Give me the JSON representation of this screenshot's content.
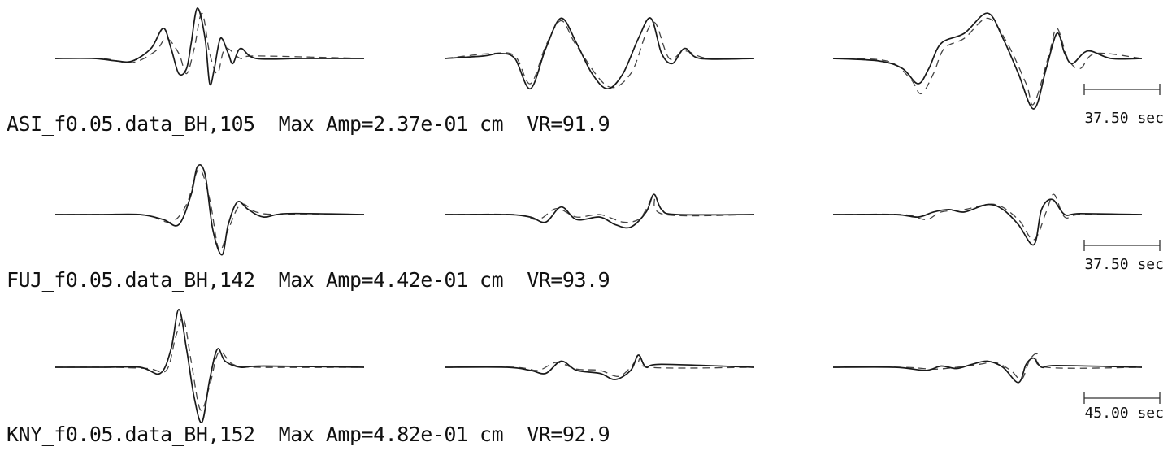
{
  "colors": {
    "observed": "#1a1a1a",
    "synthetic": "#444444",
    "background": "#ffffff"
  },
  "legend": {
    "observed": "solid line",
    "synthetic": "dashed line"
  },
  "stations": [
    {
      "name": "ASI",
      "label": "ASI_f0.05.data_BH,105  Max Amp=2.37e-01 cm  VR=91.9",
      "max_amp": "2.37e-01 cm",
      "vr": 91.9,
      "azimuth": 105,
      "scale_label": "37.50 sec",
      "components": [
        {
          "obs": [
            [
              0,
              0
            ],
            [
              0.25,
              0
            ],
            [
              0.4,
              -0.05
            ],
            [
              0.5,
              -0.05
            ],
            [
              0.62,
              0.2
            ],
            [
              0.7,
              0.6
            ],
            [
              0.75,
              0.2
            ],
            [
              0.8,
              -0.3
            ],
            [
              0.85,
              -0.2
            ],
            [
              0.88,
              0.3
            ],
            [
              0.92,
              1.0
            ],
            [
              0.97,
              0.4
            ],
            [
              1.0,
              -0.5
            ],
            [
              1.03,
              -0.2
            ],
            [
              1.07,
              0.4
            ],
            [
              1.12,
              0.1
            ],
            [
              1.15,
              -0.1
            ],
            [
              1.2,
              0.2
            ],
            [
              1.3,
              0
            ],
            [
              1.6,
              0
            ],
            [
              2.0,
              0
            ]
          ],
          "syn": [
            [
              0,
              0
            ],
            [
              0.3,
              0
            ],
            [
              0.5,
              -0.08
            ],
            [
              0.65,
              0.15
            ],
            [
              0.72,
              0.4
            ],
            [
              0.8,
              0.1
            ],
            [
              0.85,
              -0.3
            ],
            [
              0.9,
              0.2
            ],
            [
              0.95,
              0.9
            ],
            [
              1.0,
              0.1
            ],
            [
              1.05,
              -0.3
            ],
            [
              1.1,
              0.2
            ],
            [
              1.2,
              0
            ],
            [
              1.3,
              0.05
            ],
            [
              2.0,
              0
            ]
          ]
        },
        {
          "obs": [
            [
              0,
              0
            ],
            [
              0.25,
              0.05
            ],
            [
              0.35,
              0.1
            ],
            [
              0.45,
              0
            ],
            [
              0.55,
              -0.6
            ],
            [
              0.65,
              0.2
            ],
            [
              0.75,
              0.8
            ],
            [
              0.85,
              0.3
            ],
            [
              0.95,
              -0.3
            ],
            [
              1.05,
              -0.6
            ],
            [
              1.15,
              -0.3
            ],
            [
              1.25,
              0.4
            ],
            [
              1.33,
              0.8
            ],
            [
              1.4,
              0.1
            ],
            [
              1.47,
              -0.1
            ],
            [
              1.55,
              0.2
            ],
            [
              1.65,
              0
            ],
            [
              2.0,
              0
            ]
          ],
          "syn": [
            [
              0,
              0
            ],
            [
              0.3,
              0.1
            ],
            [
              0.45,
              0.05
            ],
            [
              0.55,
              -0.5
            ],
            [
              0.65,
              0.25
            ],
            [
              0.75,
              0.75
            ],
            [
              0.85,
              0.25
            ],
            [
              1.05,
              -0.55
            ],
            [
              1.2,
              -0.3
            ],
            [
              1.3,
              0.5
            ],
            [
              1.36,
              0.7
            ],
            [
              1.45,
              0
            ],
            [
              1.55,
              0.15
            ],
            [
              1.7,
              0
            ],
            [
              2.0,
              0
            ]
          ]
        },
        {
          "obs": [
            [
              0,
              0
            ],
            [
              0.3,
              -0.05
            ],
            [
              0.45,
              -0.2
            ],
            [
              0.55,
              -0.5
            ],
            [
              0.62,
              -0.2
            ],
            [
              0.7,
              0.3
            ],
            [
              0.85,
              0.5
            ],
            [
              1.0,
              0.9
            ],
            [
              1.1,
              0.4
            ],
            [
              1.2,
              -0.3
            ],
            [
              1.3,
              -1.0
            ],
            [
              1.38,
              -0.2
            ],
            [
              1.45,
              0.5
            ],
            [
              1.5,
              0.1
            ],
            [
              1.55,
              -0.1
            ],
            [
              1.65,
              0.15
            ],
            [
              1.8,
              0
            ],
            [
              2.0,
              0
            ]
          ],
          "syn": [
            [
              0,
              0
            ],
            [
              0.35,
              -0.05
            ],
            [
              0.5,
              -0.4
            ],
            [
              0.57,
              -0.7
            ],
            [
              0.65,
              -0.3
            ],
            [
              0.72,
              0.2
            ],
            [
              0.85,
              0.4
            ],
            [
              1.0,
              0.8
            ],
            [
              1.12,
              0.35
            ],
            [
              1.25,
              -0.5
            ],
            [
              1.3,
              -0.9
            ],
            [
              1.4,
              0.1
            ],
            [
              1.45,
              0.6
            ],
            [
              1.52,
              0
            ],
            [
              1.6,
              -0.2
            ],
            [
              1.7,
              0.1
            ],
            [
              2.0,
              0
            ]
          ]
        }
      ]
    },
    {
      "name": "FUJ",
      "label": "FUJ_f0.05.data_BH,142  Max Amp=4.42e-01 cm  VR=93.9",
      "max_amp": "4.42e-01 cm",
      "vr": 93.9,
      "azimuth": 142,
      "scale_label": "37.50 sec",
      "components": [
        {
          "obs": [
            [
              0,
              0
            ],
            [
              0.3,
              0
            ],
            [
              0.55,
              0
            ],
            [
              0.7,
              -0.1
            ],
            [
              0.8,
              -0.2
            ],
            [
              0.88,
              0.4
            ],
            [
              0.92,
              0.95
            ],
            [
              0.97,
              0.8
            ],
            [
              1.02,
              -0.3
            ],
            [
              1.08,
              -0.8
            ],
            [
              1.12,
              -0.2
            ],
            [
              1.18,
              0.25
            ],
            [
              1.25,
              0.1
            ],
            [
              1.35,
              -0.05
            ],
            [
              1.5,
              0.02
            ],
            [
              2.0,
              0
            ]
          ],
          "syn": [
            [
              0,
              0
            ],
            [
              0.35,
              0
            ],
            [
              0.6,
              -0.02
            ],
            [
              0.75,
              -0.15
            ],
            [
              0.85,
              0.2
            ],
            [
              0.93,
              0.9
            ],
            [
              1.0,
              0.3
            ],
            [
              1.06,
              -0.7
            ],
            [
              1.12,
              -0.3
            ],
            [
              1.2,
              0.2
            ],
            [
              1.3,
              0.05
            ],
            [
              1.45,
              0
            ],
            [
              2.0,
              0
            ]
          ]
        },
        {
          "obs": [
            [
              0,
              0
            ],
            [
              0.4,
              0
            ],
            [
              0.55,
              -0.05
            ],
            [
              0.65,
              -0.15
            ],
            [
              0.75,
              0.15
            ],
            [
              0.85,
              -0.1
            ],
            [
              1.0,
              -0.05
            ],
            [
              1.1,
              -0.2
            ],
            [
              1.2,
              -0.25
            ],
            [
              1.3,
              0.05
            ],
            [
              1.35,
              0.4
            ],
            [
              1.4,
              0.1
            ],
            [
              1.5,
              0
            ],
            [
              2.0,
              0
            ]
          ],
          "syn": [
            [
              0,
              0
            ],
            [
              0.45,
              0
            ],
            [
              0.6,
              -0.1
            ],
            [
              0.72,
              0.12
            ],
            [
              0.85,
              -0.05
            ],
            [
              1.0,
              0
            ],
            [
              1.15,
              -0.15
            ],
            [
              1.25,
              -0.1
            ],
            [
              1.3,
              0.1
            ],
            [
              1.35,
              0.35
            ],
            [
              1.42,
              0
            ],
            [
              2.0,
              0
            ]
          ]
        },
        {
          "obs": [
            [
              0,
              0
            ],
            [
              0.4,
              0
            ],
            [
              0.55,
              -0.05
            ],
            [
              0.65,
              0.05
            ],
            [
              0.75,
              0.1
            ],
            [
              0.85,
              0.05
            ],
            [
              1.0,
              0.2
            ],
            [
              1.1,
              0.1
            ],
            [
              1.2,
              -0.2
            ],
            [
              1.3,
              -0.6
            ],
            [
              1.35,
              0.1
            ],
            [
              1.42,
              0.3
            ],
            [
              1.5,
              0
            ],
            [
              1.6,
              0.02
            ],
            [
              2.0,
              0
            ]
          ],
          "syn": [
            [
              0,
              0
            ],
            [
              0.45,
              0
            ],
            [
              0.6,
              -0.1
            ],
            [
              0.7,
              0.05
            ],
            [
              0.85,
              0.1
            ],
            [
              1.05,
              0.2
            ],
            [
              1.2,
              -0.1
            ],
            [
              1.3,
              -0.5
            ],
            [
              1.38,
              0.05
            ],
            [
              1.43,
              0.4
            ],
            [
              1.5,
              -0.05
            ],
            [
              1.6,
              0
            ],
            [
              2.0,
              0
            ]
          ]
        }
      ]
    },
    {
      "name": "KNY",
      "label": "KNY_f0.05.data_BH,152  Max Amp=4.82e-01 cm  VR=92.9",
      "max_amp": "4.82e-01 cm",
      "vr": 92.9,
      "azimuth": 152,
      "scale_label": "45.00 sec",
      "components": [
        {
          "obs": [
            [
              0,
              0
            ],
            [
              0.3,
              0
            ],
            [
              0.55,
              0
            ],
            [
              0.68,
              -0.1
            ],
            [
              0.75,
              0.3
            ],
            [
              0.8,
              0.95
            ],
            [
              0.85,
              0.3
            ],
            [
              0.9,
              -0.5
            ],
            [
              0.95,
              -0.9
            ],
            [
              1.0,
              -0.2
            ],
            [
              1.05,
              0.3
            ],
            [
              1.1,
              0.1
            ],
            [
              1.2,
              0
            ],
            [
              1.35,
              0.02
            ],
            [
              2.0,
              0
            ]
          ],
          "syn": [
            [
              0,
              0
            ],
            [
              0.35,
              0
            ],
            [
              0.6,
              -0.02
            ],
            [
              0.72,
              -0.05
            ],
            [
              0.78,
              0.5
            ],
            [
              0.83,
              0.8
            ],
            [
              0.88,
              0.1
            ],
            [
              0.94,
              -0.7
            ],
            [
              1.0,
              -0.3
            ],
            [
              1.06,
              0.25
            ],
            [
              1.15,
              0.05
            ],
            [
              1.3,
              0
            ],
            [
              2.0,
              0
            ]
          ]
        },
        {
          "obs": [
            [
              0,
              0
            ],
            [
              0.4,
              0
            ],
            [
              0.55,
              -0.05
            ],
            [
              0.65,
              -0.1
            ],
            [
              0.75,
              0.1
            ],
            [
              0.85,
              -0.05
            ],
            [
              1.0,
              -0.1
            ],
            [
              1.1,
              -0.2
            ],
            [
              1.2,
              -0.05
            ],
            [
              1.25,
              0.2
            ],
            [
              1.3,
              0
            ],
            [
              1.4,
              0.05
            ],
            [
              2.0,
              0
            ]
          ],
          "syn": [
            [
              0,
              0
            ],
            [
              0.45,
              0
            ],
            [
              0.6,
              -0.05
            ],
            [
              0.72,
              0.08
            ],
            [
              0.85,
              -0.03
            ],
            [
              1.0,
              -0.05
            ],
            [
              1.12,
              -0.15
            ],
            [
              1.2,
              0
            ],
            [
              1.26,
              0.18
            ],
            [
              1.32,
              0
            ],
            [
              2.0,
              0
            ]
          ]
        },
        {
          "obs": [
            [
              0,
              0
            ],
            [
              0.4,
              0
            ],
            [
              0.6,
              -0.05
            ],
            [
              0.7,
              0.02
            ],
            [
              0.8,
              -0.02
            ],
            [
              0.9,
              0.05
            ],
            [
              1.0,
              0.1
            ],
            [
              1.1,
              0
            ],
            [
              1.2,
              -0.25
            ],
            [
              1.25,
              0.05
            ],
            [
              1.3,
              0.15
            ],
            [
              1.35,
              0
            ],
            [
              1.45,
              0.03
            ],
            [
              2.0,
              0
            ]
          ],
          "syn": [
            [
              0,
              0
            ],
            [
              0.45,
              0
            ],
            [
              0.65,
              -0.03
            ],
            [
              0.8,
              0
            ],
            [
              0.95,
              0.05
            ],
            [
              1.05,
              0.08
            ],
            [
              1.15,
              -0.05
            ],
            [
              1.22,
              -0.2
            ],
            [
              1.27,
              0.1
            ],
            [
              1.32,
              0.22
            ],
            [
              1.38,
              0
            ],
            [
              2.0,
              0
            ]
          ]
        }
      ]
    }
  ]
}
